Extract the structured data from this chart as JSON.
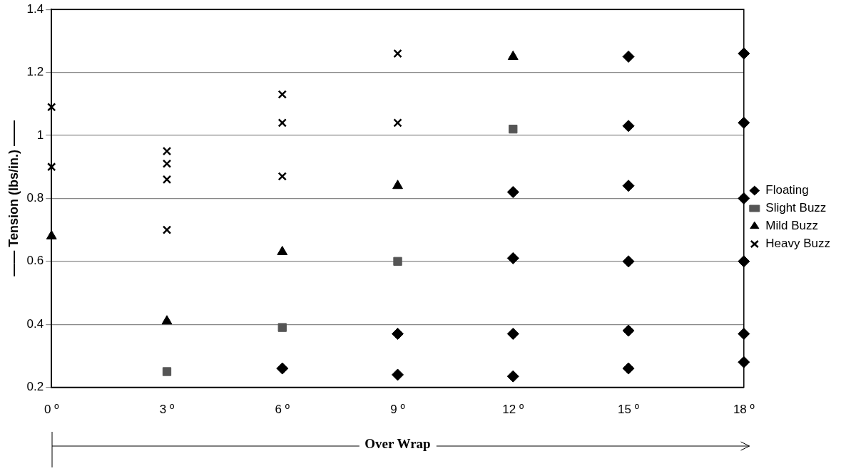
{
  "chart_data": {
    "type": "scatter",
    "xlabel": "Over Wrap",
    "ylabel": "—— Tension (lbs/in.) ——",
    "categories": [
      "0 º",
      "3 º",
      "6 º",
      "9 º",
      "12 º",
      "15 º",
      "18 º"
    ],
    "ylim": [
      0.2,
      1.4
    ],
    "yticks": [
      0.2,
      0.4,
      0.6,
      0.8,
      1,
      1.2,
      1.4
    ],
    "grid": "y",
    "legend": "right",
    "series": [
      {
        "name": "Floating",
        "color": "#000000",
        "marker": "diamond",
        "x": [
          "6 º",
          "9 º",
          "9 º",
          "12 º",
          "12 º",
          "12 º",
          "12 º",
          "15 º",
          "15 º",
          "15 º",
          "15 º",
          "15 º",
          "15 º",
          "18 º",
          "18 º",
          "18 º",
          "18 º",
          "18 º",
          "18 º"
        ],
        "values": [
          0.26,
          0.37,
          0.24,
          0.82,
          0.61,
          0.37,
          0.235,
          1.25,
          1.03,
          0.84,
          0.6,
          0.38,
          0.26,
          1.26,
          1.04,
          0.8,
          0.6,
          0.37,
          0.28
        ]
      },
      {
        "name": "Slight Buzz",
        "color": "#555555",
        "marker": "square",
        "x": [
          "3 º",
          "6 º",
          "9 º",
          "12 º"
        ],
        "values": [
          0.25,
          0.39,
          0.6,
          1.02
        ]
      },
      {
        "name": "Mild Buzz",
        "color": "#000000",
        "marker": "triangle",
        "x": [
          "0 º",
          "3 º",
          "6 º",
          "9 º",
          "12 º"
        ],
        "values": [
          0.68,
          0.41,
          0.63,
          0.84,
          1.25
        ]
      },
      {
        "name": "Heavy Buzz",
        "color": "#000000",
        "marker": "cross",
        "x": [
          "0 º",
          "0 º",
          "3 º",
          "3 º",
          "3 º",
          "3 º",
          "6 º",
          "6 º",
          "6 º",
          "9 º",
          "9 º"
        ],
        "values": [
          1.09,
          0.9,
          0.95,
          0.91,
          0.86,
          0.7,
          1.13,
          1.04,
          0.87,
          1.26,
          1.04
        ]
      }
    ]
  }
}
